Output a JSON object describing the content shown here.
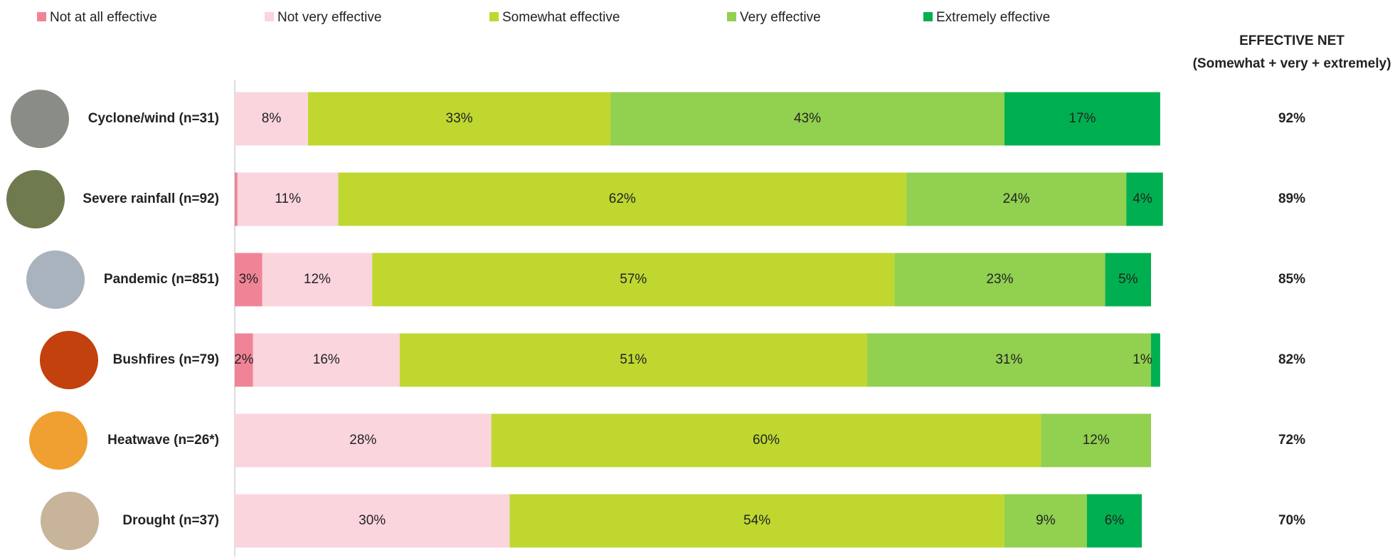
{
  "chart_data": {
    "type": "stacked-bar-horizontal",
    "categories": [
      "Cyclone/wind (n=31)",
      "Severe rainfall (n=92)",
      "Pandemic  (n=851)",
      "Bushfires (n=79)",
      "Heatwave (n=26*)",
      "Drought (n=37)"
    ],
    "xlim": [
      0,
      100
    ],
    "series": [
      {
        "name": "Not at all effective",
        "color": "#f08496",
        "values": [
          0,
          0.3,
          3,
          2,
          0,
          0
        ],
        "value_labels": [
          null,
          null,
          "3%",
          "2%",
          null,
          null
        ]
      },
      {
        "name": "Not very effective",
        "color": "#fad5dd",
        "values": [
          8,
          11,
          12,
          16,
          28,
          30
        ],
        "value_labels": [
          "8%",
          "11%",
          "12%",
          "16%",
          "28%",
          "30%"
        ]
      },
      {
        "name": "Somewhat effective",
        "color": "#c0d730",
        "values": [
          33,
          62,
          57,
          51,
          60,
          54
        ],
        "value_labels": [
          "33%",
          "62%",
          "57%",
          "51%",
          "60%",
          "54%"
        ]
      },
      {
        "name": "Very effective",
        "color": "#92d050",
        "values": [
          43,
          24,
          23,
          31,
          12,
          9
        ],
        "value_labels": [
          "43%",
          "24%",
          "23%",
          "31%",
          "12%",
          "9%"
        ]
      },
      {
        "name": "Extremely effective",
        "color": "#00b050",
        "values": [
          17,
          4,
          5,
          1,
          0,
          6
        ],
        "value_labels": [
          "17%",
          "4%",
          "5%",
          "1%",
          null,
          "6%"
        ]
      }
    ],
    "net": {
      "title": "EFFECTIVE NET",
      "subtitle": "(Somewhat + very + extremely)",
      "values": [
        92,
        89,
        85,
        82,
        72,
        70
      ],
      "value_labels": [
        "92%",
        "89%",
        "85%",
        "82%",
        "72%",
        "70%"
      ]
    }
  }
}
